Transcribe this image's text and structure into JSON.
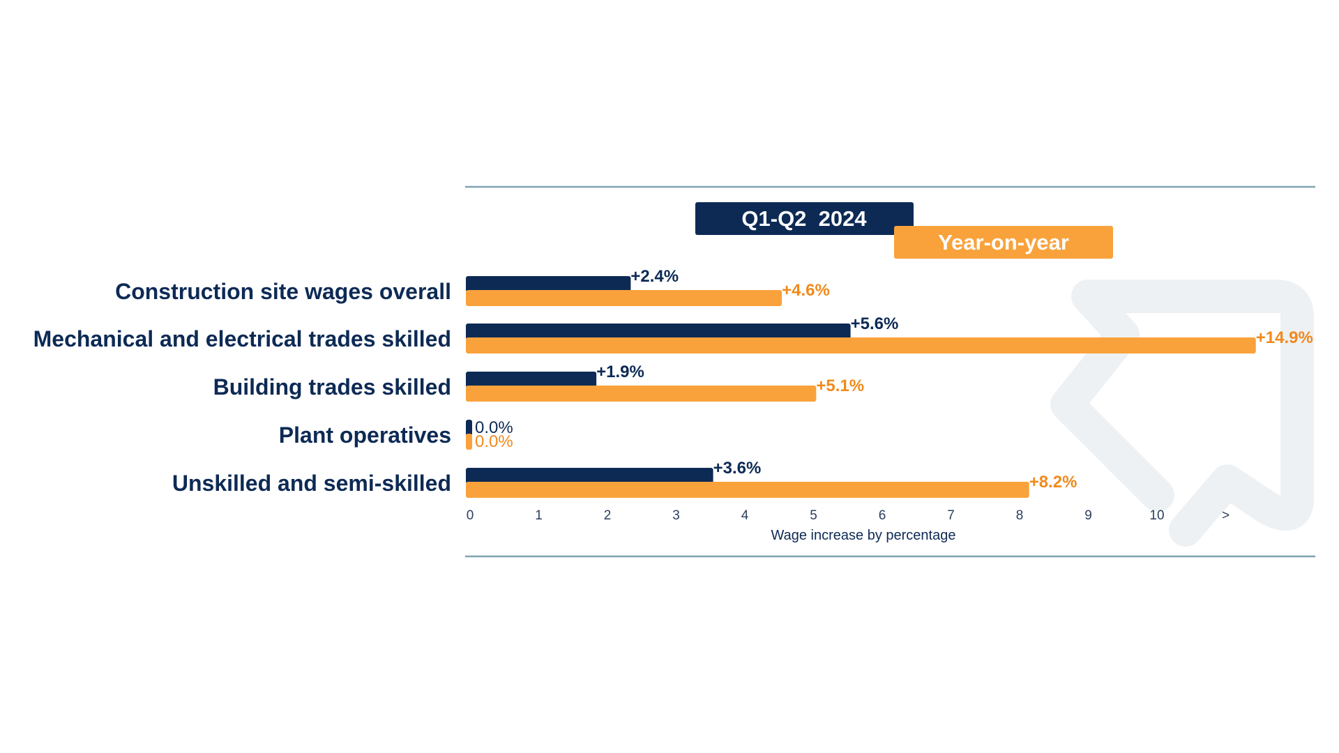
{
  "chart_data": {
    "type": "bar",
    "orientation": "horizontal",
    "categories": [
      "Construction site wages overall",
      "Mechanical and electrical trades skilled",
      "Building trades skilled",
      "Plant operatives",
      "Unskilled and semi-skilled"
    ],
    "series": [
      {
        "name": "Q1-Q2  2024",
        "color": "#0d2a55",
        "values": [
          2.4,
          5.6,
          1.9,
          0.0,
          3.6
        ],
        "labels": [
          "+2.4%",
          "+5.6%",
          "+1.9%",
          "0.0%",
          "+3.6%"
        ]
      },
      {
        "name": "Year-on-year",
        "color": "#f9a23b",
        "label_color": "#f08a1c",
        "values": [
          4.6,
          14.9,
          5.1,
          0.0,
          8.2
        ],
        "labels": [
          "+4.6%",
          "+14.9%",
          "+5.1%",
          "0.0%",
          "+8.2%"
        ]
      }
    ],
    "xlabel": "Wage increase by percentage",
    "xticks": [
      "0",
      "1",
      "2",
      "3",
      "4",
      "5",
      "6",
      "7",
      "8",
      "9",
      "10",
      ">"
    ],
    "xlim": [
      0,
      11
    ],
    "axis_break": ">",
    "legend_placement": "top-center",
    "grid": false,
    "rule_color": "#7fa3b0",
    "watermark_color": "#eef1f4"
  }
}
